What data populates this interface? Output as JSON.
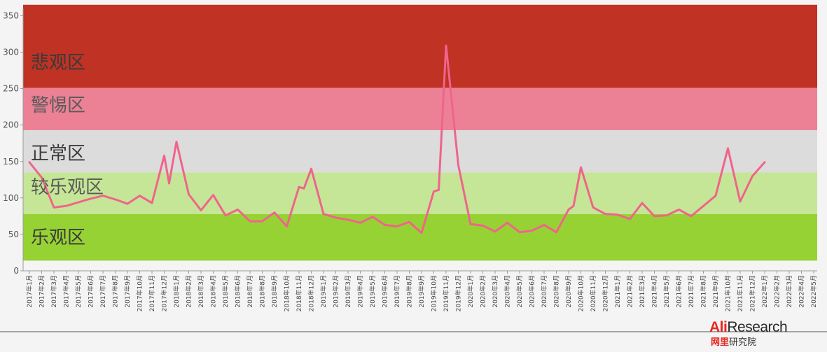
{
  "chart_data": {
    "type": "line",
    "title": "",
    "xlabel": "",
    "ylabel": "",
    "ylim": [
      0,
      360
    ],
    "yticks": [
      0,
      50,
      100,
      150,
      200,
      250,
      300,
      350
    ],
    "grid": false,
    "zones": [
      {
        "label": "乐观区",
        "from": 14,
        "to": 78,
        "color": "#96d233"
      },
      {
        "label": "较乐观区",
        "from": 78,
        "to": 135,
        "color": "#c5e696"
      },
      {
        "label": "正常区",
        "from": 135,
        "to": 193,
        "color": "#dcdcdc"
      },
      {
        "label": "警惕区",
        "from": 193,
        "to": 251,
        "color": "#ec8196"
      },
      {
        "label": "悲观区",
        "from": 251,
        "to": 365,
        "color": "#bf3224"
      }
    ],
    "line_color": "#f0648c",
    "categories": [
      "2017年1月",
      "2017年2月",
      "2017年3月",
      "2017年4月",
      "2017年5月",
      "2017年6月",
      "2017年7月",
      "2017年8月",
      "2017年9月",
      "2017年10月",
      "2017年11月",
      "2017年12月",
      "2018年1月",
      "2018年2月",
      "2018年3月",
      "2018年4月",
      "2018年5月",
      "2018年6月",
      "2018年7月",
      "2018年8月",
      "2018年9月",
      "2018年10月",
      "2018年11月",
      "2018年12月",
      "2019年1月",
      "2019年2月",
      "2019年3月",
      "2019年4月",
      "2019年5月",
      "2019年6月",
      "2019年7月",
      "2019年8月",
      "2019年9月",
      "2019年10月",
      "2019年11月",
      "2019年12月",
      "2020年1月",
      "2020年2月",
      "2020年3月",
      "2020年4月",
      "2020年5月",
      "2020年6月",
      "2020年7月",
      "2020年8月",
      "2020年9月",
      "2020年10月",
      "2020年11月",
      "2020年12月",
      "2021年1月",
      "2021年2月",
      "2021年3月",
      "2021年4月",
      "2021年5月",
      "2021年6月",
      "2021年7月",
      "2021年8月",
      "2021年9月",
      "2021年10月",
      "2021年11月",
      "2021年12月",
      "2022年1月",
      "2022年2月",
      "2022年3月",
      "2022年4月",
      "2022年5月"
    ],
    "series": [
      {
        "points": [
          [
            0,
            149
          ],
          [
            1,
            128
          ],
          [
            2,
            87
          ],
          [
            3,
            89
          ],
          [
            4,
            94
          ],
          [
            5,
            99
          ],
          [
            6,
            103
          ],
          [
            7,
            98
          ],
          [
            8,
            92
          ],
          [
            9,
            103
          ],
          [
            10,
            93
          ],
          [
            11,
            158
          ],
          [
            11.4,
            120
          ],
          [
            12,
            177
          ],
          [
            13,
            105
          ],
          [
            14,
            83
          ],
          [
            15,
            104
          ],
          [
            16,
            76
          ],
          [
            17,
            84
          ],
          [
            18,
            68
          ],
          [
            19,
            68
          ],
          [
            20,
            80
          ],
          [
            21,
            61
          ],
          [
            22,
            115
          ],
          [
            22.4,
            113
          ],
          [
            23,
            140
          ],
          [
            24,
            78
          ],
          [
            25,
            73
          ],
          [
            26,
            70
          ],
          [
            27,
            66
          ],
          [
            28,
            74
          ],
          [
            29,
            63
          ],
          [
            30,
            61
          ],
          [
            31,
            67
          ],
          [
            32,
            52
          ],
          [
            33,
            109
          ],
          [
            33.4,
            111
          ],
          [
            34,
            309
          ],
          [
            35,
            145
          ],
          [
            36,
            64
          ],
          [
            37,
            62
          ],
          [
            38,
            54
          ],
          [
            39,
            66
          ],
          [
            40,
            53
          ],
          [
            41,
            55
          ],
          [
            42,
            63
          ],
          [
            43,
            53
          ],
          [
            44,
            84
          ],
          [
            44.4,
            89
          ],
          [
            45,
            142
          ],
          [
            46,
            87
          ],
          [
            47,
            78
          ],
          [
            48,
            77
          ],
          [
            49,
            71
          ],
          [
            50,
            93
          ],
          [
            51,
            75
          ],
          [
            52,
            76
          ],
          [
            53,
            84
          ],
          [
            54,
            75
          ],
          [
            55,
            89
          ],
          [
            56,
            103
          ],
          [
            57,
            168
          ],
          [
            58,
            95
          ],
          [
            59,
            130
          ],
          [
            60,
            149
          ]
        ]
      }
    ]
  },
  "brand": {
    "ali": "Ali",
    "research": "Research",
    "cn_a": "网里",
    "cn_b": "研究院"
  }
}
